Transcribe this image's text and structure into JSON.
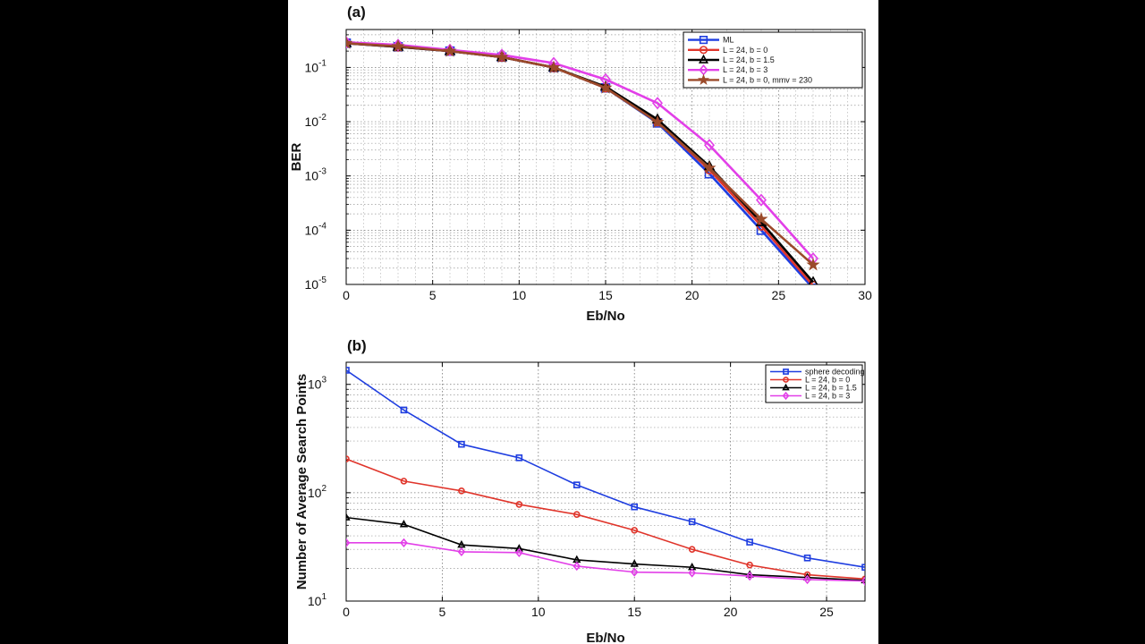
{
  "chart_data": [
    {
      "panel_label": "(a)",
      "type": "line",
      "yscale": "log",
      "xlabel": "Eb/No",
      "ylabel": "BER",
      "xlim": [
        0,
        30
      ],
      "ylim": [
        1e-05,
        0.5
      ],
      "x_ticks": [
        0,
        5,
        10,
        15,
        20,
        25,
        30
      ],
      "y_ticks": [
        {
          "base": "10",
          "exp": "-5",
          "value": 1e-05
        },
        {
          "base": "10",
          "exp": "-4",
          "value": 0.0001
        },
        {
          "base": "10",
          "exp": "-3",
          "value": 0.001
        },
        {
          "base": "10",
          "exp": "-2",
          "value": 0.01
        },
        {
          "base": "10",
          "exp": "-1",
          "value": 0.1
        }
      ],
      "grid": true,
      "legend_position": "top-right",
      "series": [
        {
          "name": "ML",
          "color": "#1f3ee0",
          "marker": "square",
          "x": [
            0,
            3,
            6,
            9,
            12,
            15,
            18,
            21,
            24,
            27
          ],
          "y": [
            0.28,
            0.24,
            0.2,
            0.155,
            0.1,
            0.042,
            0.0095,
            0.0011,
            0.0001,
            8.5e-06
          ]
        },
        {
          "name": "L = 24, b = 0",
          "color": "#e0352b",
          "marker": "circle",
          "x": [
            0,
            3,
            6,
            9,
            12,
            15,
            18,
            21,
            24,
            27
          ],
          "y": [
            0.28,
            0.24,
            0.2,
            0.155,
            0.1,
            0.042,
            0.01,
            0.0013,
            0.00012,
            9.5e-06
          ]
        },
        {
          "name": "L = 24, b = 1.5",
          "color": "#000000",
          "marker": "triangle",
          "x": [
            0,
            3,
            6,
            9,
            12,
            15,
            18,
            21,
            24,
            27
          ],
          "y": [
            0.28,
            0.24,
            0.2,
            0.155,
            0.1,
            0.044,
            0.011,
            0.0015,
            0.00014,
            1.1e-05
          ]
        },
        {
          "name": "L = 24, b = 3",
          "color": "#e23fe8",
          "marker": "diamond",
          "x": [
            0,
            3,
            6,
            9,
            12,
            15,
            18,
            21,
            24,
            27
          ],
          "y": [
            0.29,
            0.26,
            0.21,
            0.17,
            0.12,
            0.06,
            0.022,
            0.0037,
            0.00036,
            3e-05
          ]
        },
        {
          "name": "L = 24, b = 0, mmv = 230",
          "color": "#9b4a2a",
          "marker": "star",
          "x": [
            0,
            3,
            6,
            9,
            12,
            15,
            18,
            21,
            24,
            27
          ],
          "y": [
            0.28,
            0.245,
            0.2,
            0.155,
            0.1,
            0.042,
            0.0098,
            0.0014,
            0.00016,
            2.3e-05
          ]
        }
      ]
    },
    {
      "panel_label": "(b)",
      "type": "line",
      "yscale": "log",
      "xlabel": "Eb/No",
      "ylabel": "Number of Average Search Points",
      "xlim": [
        0,
        27
      ],
      "ylim": [
        10,
        1600
      ],
      "x_ticks": [
        0,
        5,
        10,
        15,
        20,
        25
      ],
      "y_ticks": [
        {
          "base": "10",
          "exp": "1",
          "value": 10
        },
        {
          "base": "10",
          "exp": "2",
          "value": 100
        },
        {
          "base": "10",
          "exp": "3",
          "value": 1000
        }
      ],
      "grid": true,
      "legend_position": "top-right",
      "series": [
        {
          "name": "sphere decoding",
          "color": "#1f3ee0",
          "marker": "square",
          "x": [
            0,
            3,
            6,
            9,
            12,
            15,
            18,
            21,
            24,
            27
          ],
          "y": [
            1350,
            580,
            280,
            210,
            118,
            74,
            54,
            35,
            25,
            20.5
          ]
        },
        {
          "name": "L = 24, b = 0",
          "color": "#e0352b",
          "marker": "circle",
          "x": [
            0,
            3,
            6,
            9,
            12,
            15,
            18,
            21,
            24,
            27
          ],
          "y": [
            205,
            128,
            104,
            78,
            63,
            45,
            30,
            21.5,
            17.5,
            16
          ]
        },
        {
          "name": "L = 24, b = 1.5",
          "color": "#000000",
          "marker": "triangle",
          "x": [
            0,
            3,
            6,
            9,
            12,
            15,
            18,
            21,
            24,
            27
          ],
          "y": [
            59,
            51,
            33,
            30.5,
            24,
            22,
            20.5,
            17.5,
            16.5,
            15.5
          ]
        },
        {
          "name": "L = 24, b = 3",
          "color": "#e23fe8",
          "marker": "diamond",
          "x": [
            0,
            3,
            6,
            9,
            12,
            15,
            18,
            21,
            24,
            27
          ],
          "y": [
            34.5,
            34.5,
            28.5,
            28,
            21,
            18.5,
            18.2,
            17,
            15.8,
            15.3
          ]
        }
      ]
    }
  ]
}
